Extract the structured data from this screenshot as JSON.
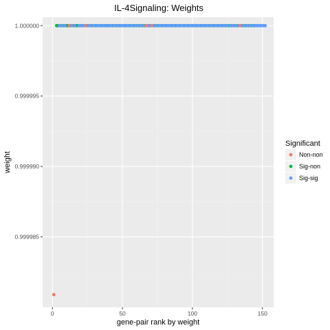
{
  "chart_data": {
    "type": "scatter",
    "title": "IL-4Signaling: Weights",
    "xlabel": "gene-pair rank by weight",
    "ylabel": "weight",
    "xlim": [
      -7,
      158
    ],
    "ylim": [
      0.99998,
      1.0000006
    ],
    "x_ticks": [
      0,
      50,
      100,
      150
    ],
    "x_tick_labels": [
      "0",
      "50",
      "100",
      "150"
    ],
    "y_ticks": [
      0.999985,
      0.99999,
      0.999995,
      1.0
    ],
    "y_tick_labels": [
      "0.999985",
      "0.999990",
      "0.999995",
      "1.000000"
    ],
    "grid": true,
    "legend": {
      "title": "Significant",
      "position": "right",
      "entries": [
        {
          "label": "Non-non",
          "color": "#F8766D"
        },
        {
          "label": "Sig-non",
          "color": "#00BA38"
        },
        {
          "label": "Sig-sig",
          "color": "#619CFF"
        }
      ]
    },
    "series": [
      {
        "name": "Non-non",
        "color": "#F8766D",
        "x": [
          1,
          12,
          24,
          67,
          71,
          134
        ],
        "y": [
          0.9999809,
          1.0,
          1.0,
          1.0,
          1.0,
          1.0
        ]
      },
      {
        "name": "Sig-non",
        "color": "#00BA38",
        "x": [
          3,
          4,
          6,
          8,
          10,
          11,
          13,
          15,
          17,
          18,
          21,
          25,
          28,
          31,
          35,
          38,
          40,
          43,
          46,
          48,
          52,
          55,
          58,
          60,
          62,
          64,
          66,
          69,
          73,
          75,
          78,
          81,
          85,
          88,
          91,
          94,
          97,
          100,
          103,
          106,
          109,
          112,
          115,
          118,
          121,
          124,
          126,
          128,
          130,
          132,
          136,
          138,
          140,
          142,
          144
        ],
        "y": [
          1.0,
          1.0,
          1.0,
          1.0,
          1.0,
          1.0,
          1.0,
          1.0,
          1.0,
          1.0,
          1.0,
          1.0,
          1.0,
          1.0,
          1.0,
          1.0,
          1.0,
          1.0,
          1.0,
          1.0,
          1.0,
          1.0,
          1.0,
          1.0,
          1.0,
          1.0,
          1.0,
          1.0,
          1.0,
          1.0,
          1.0,
          1.0,
          1.0,
          1.0,
          1.0,
          1.0,
          1.0,
          1.0,
          1.0,
          1.0,
          1.0,
          1.0,
          1.0,
          1.0,
          1.0,
          1.0,
          1.0,
          1.0,
          1.0,
          1.0,
          1.0,
          1.0,
          1.0,
          1.0,
          1.0
        ]
      },
      {
        "name": "Sig-sig",
        "color": "#619CFF",
        "x": [
          5,
          7,
          9,
          14,
          16,
          19,
          20,
          22,
          23,
          26,
          27,
          29,
          30,
          32,
          33,
          34,
          36,
          37,
          39,
          41,
          42,
          44,
          45,
          47,
          49,
          50,
          51,
          53,
          54,
          56,
          57,
          59,
          61,
          63,
          65,
          68,
          70,
          72,
          74,
          76,
          77,
          79,
          80,
          82,
          83,
          84,
          86,
          87,
          89,
          90,
          92,
          93,
          95,
          96,
          98,
          99,
          101,
          102,
          104,
          105,
          107,
          108,
          110,
          111,
          113,
          114,
          116,
          117,
          119,
          120,
          122,
          123,
          125,
          127,
          129,
          131,
          133,
          135,
          137,
          139,
          141,
          143,
          145,
          146,
          147,
          148,
          149,
          150,
          151,
          152
        ],
        "y": [
          1.0,
          1.0,
          1.0,
          1.0,
          1.0,
          1.0,
          1.0,
          1.0,
          1.0,
          1.0,
          1.0,
          1.0,
          1.0,
          1.0,
          1.0,
          1.0,
          1.0,
          1.0,
          1.0,
          1.0,
          1.0,
          1.0,
          1.0,
          1.0,
          1.0,
          1.0,
          1.0,
          1.0,
          1.0,
          1.0,
          1.0,
          1.0,
          1.0,
          1.0,
          1.0,
          1.0,
          1.0,
          1.0,
          1.0,
          1.0,
          1.0,
          1.0,
          1.0,
          1.0,
          1.0,
          1.0,
          1.0,
          1.0,
          1.0,
          1.0,
          1.0,
          1.0,
          1.0,
          1.0,
          1.0,
          1.0,
          1.0,
          1.0,
          1.0,
          1.0,
          1.0,
          1.0,
          1.0,
          1.0,
          1.0,
          1.0,
          1.0,
          1.0,
          1.0,
          1.0,
          1.0,
          1.0,
          1.0,
          1.0,
          1.0,
          1.0,
          1.0,
          1.0,
          1.0,
          1.0,
          1.0,
          1.0,
          1.0,
          1.0,
          1.0,
          1.0,
          1.0,
          1.0,
          1.0,
          1.0
        ]
      }
    ]
  }
}
